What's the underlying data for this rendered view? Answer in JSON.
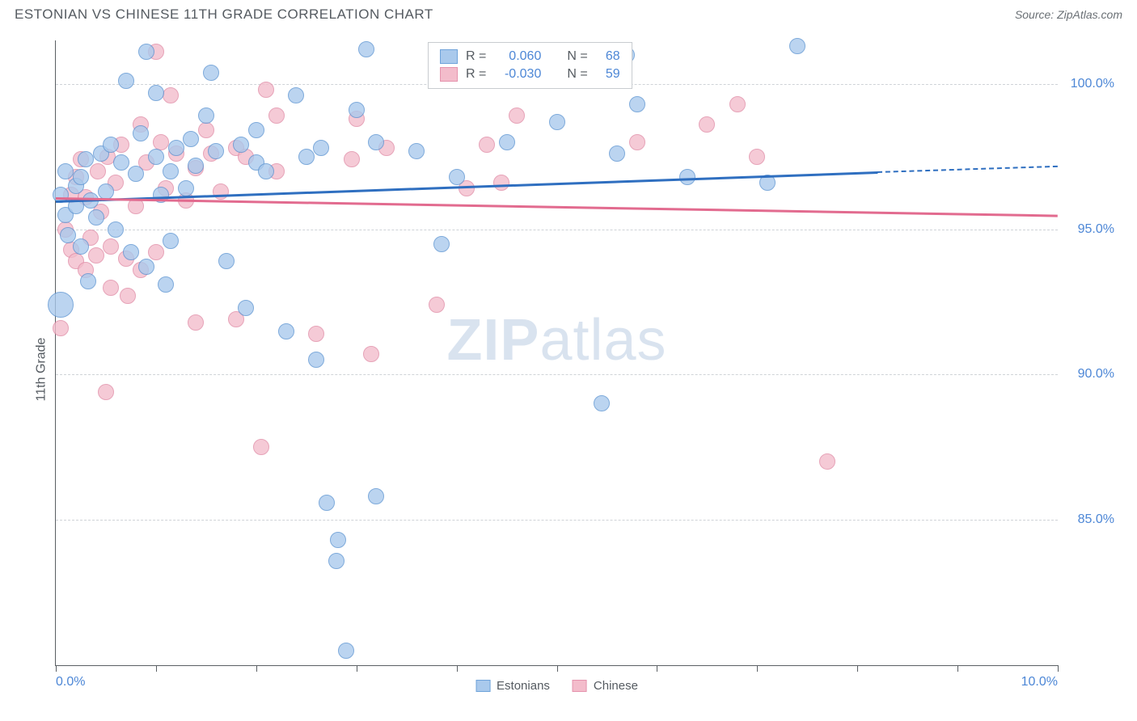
{
  "header": {
    "title": "ESTONIAN VS CHINESE 11TH GRADE CORRELATION CHART",
    "source": "Source: ZipAtlas.com"
  },
  "ylabel": "11th Grade",
  "watermark_zip": "ZIP",
  "watermark_atlas": "atlas",
  "axis": {
    "xmin": 0.0,
    "xmax": 10.0,
    "ymin": 80.0,
    "ymax": 101.5,
    "ytick_values": [
      85.0,
      90.0,
      95.0,
      100.0
    ],
    "ytick_labels": [
      "85.0%",
      "90.0%",
      "95.0%",
      "100.0%"
    ],
    "xtick_values": [
      0,
      1,
      2,
      3,
      4,
      5,
      6,
      7,
      8,
      9,
      10
    ],
    "x_left_label": "0.0%",
    "x_right_label": "10.0%",
    "grid_color": "#cfd3d7",
    "ytick_label_color": "#4d87d6"
  },
  "legend_top": {
    "rows": [
      {
        "r_label": "R =",
        "r_value": "0.060",
        "n_label": "N =",
        "n_value": "68",
        "fill": "#a9c9ec",
        "stroke": "#6fa3da"
      },
      {
        "r_label": "R =",
        "r_value": "-0.030",
        "n_label": "N =",
        "n_value": "59",
        "fill": "#f3bccb",
        "stroke": "#e593ad"
      }
    ]
  },
  "legend_bottom": {
    "items": [
      {
        "label": "Estonians",
        "fill": "#a9c9ec",
        "stroke": "#6fa3da"
      },
      {
        "label": "Chinese",
        "fill": "#f3bccb",
        "stroke": "#e593ad"
      }
    ]
  },
  "series": {
    "blue": {
      "fill": "#a9c9ec",
      "stroke": "#5b93d1",
      "radius": 10,
      "trend": {
        "x1": 0.0,
        "y1": 96.0,
        "x2_solid": 8.2,
        "y2_solid": 97.0,
        "x2_dash": 10.0,
        "y2_dash": 97.2,
        "color": "#2f6fc0"
      },
      "points": [
        {
          "x": 0.05,
          "y": 96.2
        },
        {
          "x": 0.1,
          "y": 97.0
        },
        {
          "x": 0.1,
          "y": 95.5
        },
        {
          "x": 0.12,
          "y": 94.8
        },
        {
          "x": 0.2,
          "y": 96.5
        },
        {
          "x": 0.2,
          "y": 95.8
        },
        {
          "x": 0.25,
          "y": 96.8
        },
        {
          "x": 0.25,
          "y": 94.4
        },
        {
          "x": 0.3,
          "y": 97.4
        },
        {
          "x": 0.32,
          "y": 93.2
        },
        {
          "x": 0.35,
          "y": 96.0
        },
        {
          "x": 0.4,
          "y": 95.4
        },
        {
          "x": 0.45,
          "y": 97.6
        },
        {
          "x": 0.5,
          "y": 96.3
        },
        {
          "x": 0.55,
          "y": 97.9
        },
        {
          "x": 0.6,
          "y": 95.0
        },
        {
          "x": 0.65,
          "y": 97.3
        },
        {
          "x": 0.7,
          "y": 100.1
        },
        {
          "x": 0.75,
          "y": 94.2
        },
        {
          "x": 0.8,
          "y": 96.9
        },
        {
          "x": 0.85,
          "y": 98.3
        },
        {
          "x": 0.9,
          "y": 101.1
        },
        {
          "x": 0.9,
          "y": 93.7
        },
        {
          "x": 1.0,
          "y": 97.5
        },
        {
          "x": 1.0,
          "y": 99.7
        },
        {
          "x": 1.05,
          "y": 96.2
        },
        {
          "x": 1.1,
          "y": 93.1
        },
        {
          "x": 1.15,
          "y": 97.0
        },
        {
          "x": 1.15,
          "y": 94.6
        },
        {
          "x": 1.2,
          "y": 97.8
        },
        {
          "x": 1.3,
          "y": 96.4
        },
        {
          "x": 1.35,
          "y": 98.1
        },
        {
          "x": 1.4,
          "y": 97.2
        },
        {
          "x": 1.5,
          "y": 98.9
        },
        {
          "x": 1.55,
          "y": 100.4
        },
        {
          "x": 1.6,
          "y": 97.7
        },
        {
          "x": 1.7,
          "y": 93.9
        },
        {
          "x": 1.85,
          "y": 97.9
        },
        {
          "x": 1.9,
          "y": 92.3
        },
        {
          "x": 2.0,
          "y": 98.4
        },
        {
          "x": 2.0,
          "y": 97.3
        },
        {
          "x": 2.1,
          "y": 97.0
        },
        {
          "x": 2.3,
          "y": 91.5
        },
        {
          "x": 2.4,
          "y": 99.6
        },
        {
          "x": 2.5,
          "y": 97.5
        },
        {
          "x": 2.6,
          "y": 90.5
        },
        {
          "x": 2.65,
          "y": 97.8
        },
        {
          "x": 2.7,
          "y": 85.6
        },
        {
          "x": 2.8,
          "y": 83.6
        },
        {
          "x": 2.82,
          "y": 84.3
        },
        {
          "x": 2.9,
          "y": 80.5
        },
        {
          "x": 3.0,
          "y": 99.1
        },
        {
          "x": 3.1,
          "y": 101.2
        },
        {
          "x": 3.2,
          "y": 98.0
        },
        {
          "x": 3.2,
          "y": 85.8
        },
        {
          "x": 3.6,
          "y": 97.7
        },
        {
          "x": 3.85,
          "y": 94.5
        },
        {
          "x": 4.0,
          "y": 96.8
        },
        {
          "x": 4.5,
          "y": 98.0
        },
        {
          "x": 5.0,
          "y": 98.7
        },
        {
          "x": 5.45,
          "y": 89.0
        },
        {
          "x": 5.6,
          "y": 97.6
        },
        {
          "x": 5.7,
          "y": 101.0
        },
        {
          "x": 5.8,
          "y": 99.3
        },
        {
          "x": 6.3,
          "y": 96.8
        },
        {
          "x": 7.1,
          "y": 96.6
        },
        {
          "x": 7.4,
          "y": 101.3
        },
        {
          "x": 0.05,
          "y": 92.4,
          "r": 16
        }
      ]
    },
    "pink": {
      "fill": "#f3bccb",
      "stroke": "#e08aa5",
      "radius": 10,
      "trend": {
        "x1": 0.0,
        "y1": 96.1,
        "x2_solid": 10.0,
        "y2_solid": 95.5,
        "color": "#e26b8f"
      },
      "points": [
        {
          "x": 0.1,
          "y": 95.0
        },
        {
          "x": 0.15,
          "y": 96.2
        },
        {
          "x": 0.15,
          "y": 94.3
        },
        {
          "x": 0.2,
          "y": 96.8
        },
        {
          "x": 0.2,
          "y": 93.9
        },
        {
          "x": 0.25,
          "y": 97.4
        },
        {
          "x": 0.3,
          "y": 96.1
        },
        {
          "x": 0.3,
          "y": 93.6
        },
        {
          "x": 0.35,
          "y": 94.7
        },
        {
          "x": 0.4,
          "y": 94.1
        },
        {
          "x": 0.42,
          "y": 97.0
        },
        {
          "x": 0.45,
          "y": 95.6
        },
        {
          "x": 0.5,
          "y": 89.4
        },
        {
          "x": 0.52,
          "y": 97.5
        },
        {
          "x": 0.55,
          "y": 93.0
        },
        {
          "x": 0.55,
          "y": 94.4
        },
        {
          "x": 0.6,
          "y": 96.6
        },
        {
          "x": 0.65,
          "y": 97.9
        },
        {
          "x": 0.7,
          "y": 94.0
        },
        {
          "x": 0.72,
          "y": 92.7
        },
        {
          "x": 0.8,
          "y": 95.8
        },
        {
          "x": 0.85,
          "y": 98.6
        },
        {
          "x": 0.85,
          "y": 93.6
        },
        {
          "x": 0.9,
          "y": 97.3
        },
        {
          "x": 1.0,
          "y": 101.1
        },
        {
          "x": 1.0,
          "y": 94.2
        },
        {
          "x": 1.05,
          "y": 98.0
        },
        {
          "x": 1.1,
          "y": 96.4
        },
        {
          "x": 1.15,
          "y": 99.6
        },
        {
          "x": 1.2,
          "y": 97.6
        },
        {
          "x": 1.3,
          "y": 96.0
        },
        {
          "x": 1.4,
          "y": 91.8
        },
        {
          "x": 1.4,
          "y": 97.1
        },
        {
          "x": 1.5,
          "y": 98.4
        },
        {
          "x": 1.55,
          "y": 97.6
        },
        {
          "x": 1.65,
          "y": 96.3
        },
        {
          "x": 1.8,
          "y": 97.8
        },
        {
          "x": 1.8,
          "y": 91.9
        },
        {
          "x": 1.9,
          "y": 97.5
        },
        {
          "x": 2.05,
          "y": 87.5
        },
        {
          "x": 2.1,
          "y": 99.8
        },
        {
          "x": 2.2,
          "y": 98.9
        },
        {
          "x": 2.2,
          "y": 97.0
        },
        {
          "x": 2.6,
          "y": 91.4
        },
        {
          "x": 2.95,
          "y": 97.4
        },
        {
          "x": 3.0,
          "y": 98.8
        },
        {
          "x": 3.15,
          "y": 90.7
        },
        {
          "x": 3.3,
          "y": 97.8
        },
        {
          "x": 3.8,
          "y": 92.4
        },
        {
          "x": 4.1,
          "y": 96.4
        },
        {
          "x": 4.3,
          "y": 97.9
        },
        {
          "x": 4.45,
          "y": 96.6
        },
        {
          "x": 4.6,
          "y": 98.9
        },
        {
          "x": 5.8,
          "y": 98.0
        },
        {
          "x": 6.5,
          "y": 98.6
        },
        {
          "x": 6.8,
          "y": 99.3
        },
        {
          "x": 7.0,
          "y": 97.5
        },
        {
          "x": 7.7,
          "y": 87.0
        },
        {
          "x": 0.05,
          "y": 91.6
        }
      ]
    }
  }
}
